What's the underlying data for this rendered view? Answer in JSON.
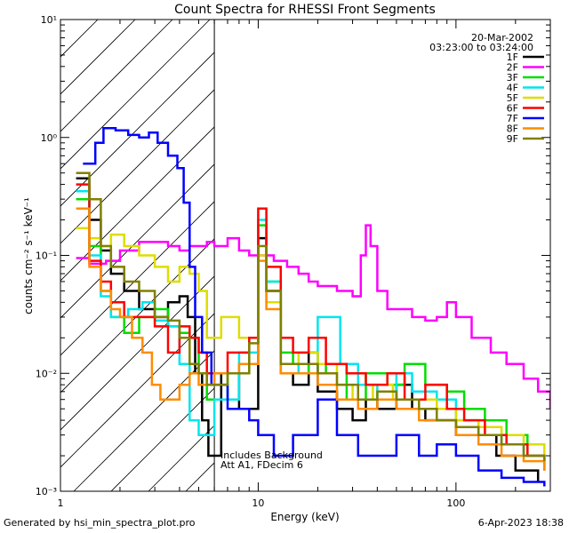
{
  "chart_data": {
    "type": "line",
    "title": "Count Spectra for RHESSI Front Segments",
    "xlabel": "Energy (keV)",
    "ylabel": "counts cm⁻² s⁻¹ keV⁻¹",
    "xscale": "log",
    "yscale": "log",
    "xlim": [
      1,
      300
    ],
    "ylim": [
      0.001,
      10
    ],
    "x_tick_labels": [
      "1",
      "10",
      "100"
    ],
    "y_tick_labels": [
      "10⁻³",
      "10⁻²",
      "10⁻¹",
      "10⁰",
      "10¹"
    ],
    "y_tick_values": [
      0.001,
      0.01,
      0.1,
      1,
      10
    ],
    "x_tick_values": [
      1,
      10,
      100
    ],
    "date": "20-Mar-2002",
    "time_range": "03:23:00 to 03:24:00",
    "annotation_lines": [
      "Includes Background",
      "Att A1, FDecim 6"
    ],
    "hatched_region_max_energy": 6,
    "series": [
      {
        "name": "1F",
        "color": "#000000",
        "points": [
          [
            1.2,
            0.45
          ],
          [
            1.4,
            0.2
          ],
          [
            1.6,
            0.11
          ],
          [
            1.8,
            0.07
          ],
          [
            2.1,
            0.05
          ],
          [
            2.5,
            0.035
          ],
          [
            3,
            0.03
          ],
          [
            3.5,
            0.04
          ],
          [
            4,
            0.045
          ],
          [
            4.4,
            0.03
          ],
          [
            4.8,
            0.01
          ],
          [
            5.2,
            0.004
          ],
          [
            5.6,
            0.002
          ],
          [
            6.5,
            0.01
          ],
          [
            8,
            0.005
          ],
          [
            10,
            0.14
          ],
          [
            11,
            0.05
          ],
          [
            13,
            0.01
          ],
          [
            15,
            0.008
          ],
          [
            18,
            0.015
          ],
          [
            20,
            0.007
          ],
          [
            25,
            0.005
          ],
          [
            30,
            0.004
          ],
          [
            35,
            0.006
          ],
          [
            40,
            0.005
          ],
          [
            50,
            0.008
          ],
          [
            60,
            0.005
          ],
          [
            70,
            0.004
          ],
          [
            80,
            0.004
          ],
          [
            100,
            0.003
          ],
          [
            130,
            0.003
          ],
          [
            160,
            0.002
          ],
          [
            200,
            0.0015
          ],
          [
            260,
            0.0012
          ]
        ]
      },
      {
        "name": "2F",
        "color": "#ff00ff",
        "points": [
          [
            1.2,
            0.095
          ],
          [
            1.4,
            0.085
          ],
          [
            1.7,
            0.09
          ],
          [
            2,
            0.11
          ],
          [
            2.5,
            0.13
          ],
          [
            3,
            0.13
          ],
          [
            3.5,
            0.12
          ],
          [
            4,
            0.11
          ],
          [
            4.5,
            0.12
          ],
          [
            5,
            0.12
          ],
          [
            5.5,
            0.13
          ],
          [
            6,
            0.12
          ],
          [
            7,
            0.14
          ],
          [
            8,
            0.11
          ],
          [
            9,
            0.1
          ],
          [
            10,
            0.1
          ],
          [
            12,
            0.09
          ],
          [
            14,
            0.08
          ],
          [
            16,
            0.07
          ],
          [
            18,
            0.06
          ],
          [
            20,
            0.055
          ],
          [
            25,
            0.05
          ],
          [
            30,
            0.045
          ],
          [
            33,
            0.1
          ],
          [
            35,
            0.18
          ],
          [
            37,
            0.12
          ],
          [
            40,
            0.05
          ],
          [
            45,
            0.035
          ],
          [
            50,
            0.035
          ],
          [
            60,
            0.03
          ],
          [
            70,
            0.028
          ],
          [
            80,
            0.03
          ],
          [
            90,
            0.04
          ],
          [
            100,
            0.03
          ],
          [
            120,
            0.02
          ],
          [
            150,
            0.015
          ],
          [
            180,
            0.012
          ],
          [
            220,
            0.009
          ],
          [
            260,
            0.007
          ],
          [
            300,
            0.005
          ]
        ]
      },
      {
        "name": "3F",
        "color": "#00dd00",
        "points": [
          [
            1.2,
            0.3
          ],
          [
            1.4,
            0.12
          ],
          [
            1.6,
            0.05
          ],
          [
            1.8,
            0.03
          ],
          [
            2.1,
            0.022
          ],
          [
            2.5,
            0.03
          ],
          [
            3,
            0.035
          ],
          [
            3.5,
            0.025
          ],
          [
            4,
            0.022
          ],
          [
            4.5,
            0.02
          ],
          [
            5,
            0.01
          ],
          [
            5.5,
            0.006
          ],
          [
            7,
            0.01
          ],
          [
            9,
            0.02
          ],
          [
            10,
            0.18
          ],
          [
            11,
            0.06
          ],
          [
            13,
            0.015
          ],
          [
            15,
            0.012
          ],
          [
            18,
            0.01
          ],
          [
            22,
            0.012
          ],
          [
            28,
            0.006
          ],
          [
            35,
            0.01
          ],
          [
            45,
            0.008
          ],
          [
            55,
            0.012
          ],
          [
            70,
            0.008
          ],
          [
            90,
            0.007
          ],
          [
            110,
            0.005
          ],
          [
            140,
            0.004
          ],
          [
            180,
            0.003
          ],
          [
            230,
            0.002
          ],
          [
            280,
            0.0015
          ]
        ]
      },
      {
        "name": "4F",
        "color": "#00e5ee",
        "points": [
          [
            1.2,
            0.35
          ],
          [
            1.4,
            0.1
          ],
          [
            1.6,
            0.045
          ],
          [
            1.8,
            0.03
          ],
          [
            2.2,
            0.035
          ],
          [
            2.6,
            0.04
          ],
          [
            3,
            0.028
          ],
          [
            3.5,
            0.025
          ],
          [
            4,
            0.012
          ],
          [
            4.5,
            0.004
          ],
          [
            5,
            0.003
          ],
          [
            6,
            0.006
          ],
          [
            8,
            0.015
          ],
          [
            10,
            0.2
          ],
          [
            11,
            0.06
          ],
          [
            13,
            0.012
          ],
          [
            16,
            0.01
          ],
          [
            20,
            0.03
          ],
          [
            26,
            0.012
          ],
          [
            32,
            0.008
          ],
          [
            40,
            0.006
          ],
          [
            50,
            0.01
          ],
          [
            60,
            0.007
          ],
          [
            80,
            0.006
          ],
          [
            100,
            0.004
          ],
          [
            130,
            0.003
          ],
          [
            170,
            0.0025
          ],
          [
            220,
            0.002
          ],
          [
            280,
            0.0015
          ]
        ]
      },
      {
        "name": "5F",
        "color": "#dddd00",
        "points": [
          [
            1.2,
            0.17
          ],
          [
            1.4,
            0.14
          ],
          [
            1.6,
            0.12
          ],
          [
            1.8,
            0.15
          ],
          [
            2.1,
            0.12
          ],
          [
            2.5,
            0.1
          ],
          [
            3,
            0.08
          ],
          [
            3.5,
            0.06
          ],
          [
            4,
            0.08
          ],
          [
            4.5,
            0.07
          ],
          [
            5,
            0.05
          ],
          [
            5.5,
            0.02
          ],
          [
            6.5,
            0.03
          ],
          [
            8,
            0.02
          ],
          [
            10,
            0.1
          ],
          [
            11,
            0.04
          ],
          [
            13,
            0.012
          ],
          [
            16,
            0.015
          ],
          [
            20,
            0.012
          ],
          [
            25,
            0.008
          ],
          [
            30,
            0.006
          ],
          [
            38,
            0.008
          ],
          [
            48,
            0.006
          ],
          [
            60,
            0.006
          ],
          [
            80,
            0.005
          ],
          [
            100,
            0.004
          ],
          [
            130,
            0.0035
          ],
          [
            170,
            0.003
          ],
          [
            220,
            0.0025
          ],
          [
            280,
            0.002
          ]
        ]
      },
      {
        "name": "6F",
        "color": "#ff0000",
        "points": [
          [
            1.2,
            0.4
          ],
          [
            1.4,
            0.09
          ],
          [
            1.6,
            0.06
          ],
          [
            1.8,
            0.04
          ],
          [
            2.1,
            0.03
          ],
          [
            2.5,
            0.03
          ],
          [
            3,
            0.025
          ],
          [
            3.5,
            0.015
          ],
          [
            4,
            0.025
          ],
          [
            4.5,
            0.02
          ],
          [
            5,
            0.015
          ],
          [
            5.5,
            0.01
          ],
          [
            7,
            0.015
          ],
          [
            9,
            0.02
          ],
          [
            10,
            0.25
          ],
          [
            11,
            0.08
          ],
          [
            13,
            0.02
          ],
          [
            15,
            0.015
          ],
          [
            18,
            0.02
          ],
          [
            22,
            0.012
          ],
          [
            28,
            0.01
          ],
          [
            35,
            0.008
          ],
          [
            45,
            0.01
          ],
          [
            55,
            0.006
          ],
          [
            70,
            0.008
          ],
          [
            90,
            0.005
          ],
          [
            110,
            0.004
          ],
          [
            140,
            0.003
          ],
          [
            180,
            0.0025
          ],
          [
            230,
            0.002
          ],
          [
            280,
            0.0015
          ]
        ]
      },
      {
        "name": "7F",
        "color": "#0000ff",
        "points": [
          [
            1.3,
            0.6
          ],
          [
            1.5,
            0.9
          ],
          [
            1.65,
            1.2
          ],
          [
            1.9,
            1.15
          ],
          [
            2.2,
            1.05
          ],
          [
            2.5,
            1.0
          ],
          [
            2.8,
            1.1
          ],
          [
            3.1,
            0.9
          ],
          [
            3.5,
            0.7
          ],
          [
            3.9,
            0.55
          ],
          [
            4.2,
            0.28
          ],
          [
            4.5,
            0.08
          ],
          [
            4.8,
            0.03
          ],
          [
            5.2,
            0.015
          ],
          [
            5.8,
            0.008
          ],
          [
            7,
            0.005
          ],
          [
            9,
            0.004
          ],
          [
            10,
            0.003
          ],
          [
            12,
            0.002
          ],
          [
            15,
            0.003
          ],
          [
            20,
            0.006
          ],
          [
            25,
            0.003
          ],
          [
            32,
            0.002
          ],
          [
            40,
            0.002
          ],
          [
            50,
            0.003
          ],
          [
            65,
            0.002
          ],
          [
            80,
            0.0025
          ],
          [
            100,
            0.002
          ],
          [
            130,
            0.0015
          ],
          [
            170,
            0.0013
          ],
          [
            220,
            0.0012
          ],
          [
            280,
            0.0011
          ]
        ]
      },
      {
        "name": "8F",
        "color": "#ff8c00",
        "points": [
          [
            1.2,
            0.25
          ],
          [
            1.4,
            0.08
          ],
          [
            1.6,
            0.05
          ],
          [
            1.8,
            0.035
          ],
          [
            2,
            0.03
          ],
          [
            2.3,
            0.02
          ],
          [
            2.6,
            0.015
          ],
          [
            2.9,
            0.008
          ],
          [
            3.2,
            0.006
          ],
          [
            3.6,
            0.006
          ],
          [
            4,
            0.008
          ],
          [
            4.5,
            0.01
          ],
          [
            5,
            0.008
          ],
          [
            6,
            0.01
          ],
          [
            8,
            0.012
          ],
          [
            10,
            0.09
          ],
          [
            11,
            0.035
          ],
          [
            13,
            0.01
          ],
          [
            16,
            0.01
          ],
          [
            20,
            0.008
          ],
          [
            25,
            0.006
          ],
          [
            32,
            0.005
          ],
          [
            40,
            0.006
          ],
          [
            50,
            0.005
          ],
          [
            65,
            0.004
          ],
          [
            80,
            0.004
          ],
          [
            100,
            0.003
          ],
          [
            130,
            0.0025
          ],
          [
            170,
            0.002
          ],
          [
            220,
            0.0018
          ],
          [
            280,
            0.0015
          ]
        ]
      },
      {
        "name": "9F",
        "color": "#808000",
        "points": [
          [
            1.2,
            0.5
          ],
          [
            1.4,
            0.3
          ],
          [
            1.6,
            0.12
          ],
          [
            1.8,
            0.08
          ],
          [
            2.1,
            0.06
          ],
          [
            2.5,
            0.05
          ],
          [
            3,
            0.03
          ],
          [
            3.5,
            0.028
          ],
          [
            4,
            0.02
          ],
          [
            4.5,
            0.012
          ],
          [
            5,
            0.01
          ],
          [
            5.5,
            0.008
          ],
          [
            7,
            0.01
          ],
          [
            9,
            0.018
          ],
          [
            10,
            0.12
          ],
          [
            11,
            0.05
          ],
          [
            13,
            0.012
          ],
          [
            16,
            0.012
          ],
          [
            20,
            0.01
          ],
          [
            25,
            0.008
          ],
          [
            32,
            0.006
          ],
          [
            40,
            0.007
          ],
          [
            50,
            0.006
          ],
          [
            65,
            0.005
          ],
          [
            80,
            0.004
          ],
          [
            100,
            0.0035
          ],
          [
            130,
            0.003
          ],
          [
            170,
            0.0025
          ],
          [
            220,
            0.002
          ],
          [
            280,
            0.0018
          ]
        ]
      }
    ]
  },
  "footer": {
    "left": "Generated by hsi_min_spectra_plot.pro",
    "right": "6-Apr-2023 18:38"
  }
}
